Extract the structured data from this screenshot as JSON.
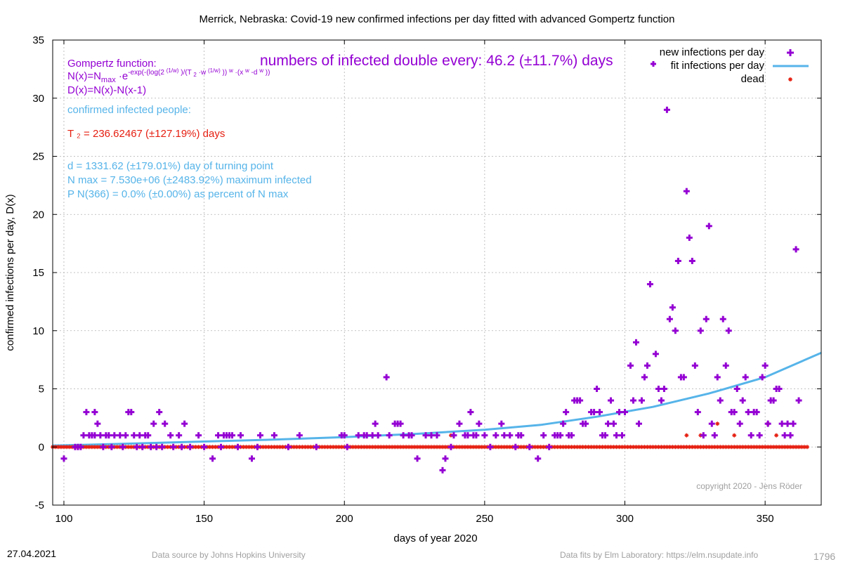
{
  "chart_data": {
    "type": "scatter",
    "title": "Merrick,  Nebraska: Covid-19 new confirmed infections per day fitted with advanced Gompertz function",
    "xlabel": "days of year 2020",
    "ylabel": "confirmed infections per day, D(x)",
    "xlim": [
      96,
      370
    ],
    "ylim": [
      -5,
      35
    ],
    "x_ticks": [
      100,
      150,
      200,
      250,
      300,
      350
    ],
    "y_ticks": [
      -5,
      0,
      5,
      10,
      15,
      20,
      25,
      30,
      35
    ],
    "grid": true,
    "legend_position": "top-right",
    "legend": [
      "new infections per day",
      "fit infections per day",
      "dead"
    ],
    "series": [
      {
        "name": "new infections per day",
        "style": "plus",
        "color": "#9400d3",
        "points": [
          [
            100,
            -1
          ],
          [
            104,
            0
          ],
          [
            105,
            0
          ],
          [
            106,
            0
          ],
          [
            107,
            1
          ],
          [
            108,
            3
          ],
          [
            109,
            1
          ],
          [
            110,
            1
          ],
          [
            111,
            3
          ],
          [
            111,
            1
          ],
          [
            112,
            2
          ],
          [
            113,
            1
          ],
          [
            114,
            0
          ],
          [
            115,
            1
          ],
          [
            116,
            1
          ],
          [
            117,
            0
          ],
          [
            118,
            1
          ],
          [
            120,
            1
          ],
          [
            121,
            0
          ],
          [
            122,
            1
          ],
          [
            123,
            3
          ],
          [
            124,
            3
          ],
          [
            125,
            1
          ],
          [
            126,
            0
          ],
          [
            127,
            1
          ],
          [
            128,
            0
          ],
          [
            129,
            1
          ],
          [
            130,
            1
          ],
          [
            131,
            0
          ],
          [
            132,
            2
          ],
          [
            133,
            0
          ],
          [
            134,
            3
          ],
          [
            135,
            0
          ],
          [
            136,
            2
          ],
          [
            138,
            1
          ],
          [
            139,
            0
          ],
          [
            141,
            1
          ],
          [
            142,
            0
          ],
          [
            143,
            2
          ],
          [
            145,
            0
          ],
          [
            148,
            1
          ],
          [
            150,
            0
          ],
          [
            153,
            -1
          ],
          [
            155,
            1
          ],
          [
            156,
            0
          ],
          [
            157,
            1
          ],
          [
            158,
            1
          ],
          [
            159,
            1
          ],
          [
            160,
            1
          ],
          [
            162,
            0
          ],
          [
            163,
            1
          ],
          [
            167,
            -1
          ],
          [
            169,
            0
          ],
          [
            170,
            1
          ],
          [
            175,
            1
          ],
          [
            180,
            0
          ],
          [
            184,
            1
          ],
          [
            190,
            0
          ],
          [
            199,
            1
          ],
          [
            200,
            1
          ],
          [
            201,
            0
          ],
          [
            205,
            1
          ],
          [
            207,
            1
          ],
          [
            208,
            1
          ],
          [
            210,
            1
          ],
          [
            211,
            2
          ],
          [
            212,
            1
          ],
          [
            215,
            6
          ],
          [
            216,
            1
          ],
          [
            218,
            2
          ],
          [
            219,
            2
          ],
          [
            220,
            2
          ],
          [
            221,
            1
          ],
          [
            223,
            1
          ],
          [
            224,
            1
          ],
          [
            226,
            -1
          ],
          [
            229,
            1
          ],
          [
            231,
            1
          ],
          [
            233,
            1
          ],
          [
            235,
            -2
          ],
          [
            236,
            -1
          ],
          [
            238,
            0
          ],
          [
            239,
            1
          ],
          [
            241,
            2
          ],
          [
            243,
            1
          ],
          [
            244,
            1
          ],
          [
            245,
            3
          ],
          [
            246,
            1
          ],
          [
            247,
            1
          ],
          [
            248,
            2
          ],
          [
            250,
            1
          ],
          [
            252,
            0
          ],
          [
            254,
            1
          ],
          [
            256,
            2
          ],
          [
            257,
            1
          ],
          [
            259,
            1
          ],
          [
            261,
            0
          ],
          [
            262,
            1
          ],
          [
            263,
            1
          ],
          [
            266,
            0
          ],
          [
            269,
            -1
          ],
          [
            271,
            1
          ],
          [
            273,
            0
          ],
          [
            275,
            1
          ],
          [
            276,
            1
          ],
          [
            277,
            1
          ],
          [
            278,
            2
          ],
          [
            279,
            3
          ],
          [
            280,
            1
          ],
          [
            281,
            1
          ],
          [
            282,
            4
          ],
          [
            283,
            4
          ],
          [
            284,
            4
          ],
          [
            285,
            2
          ],
          [
            286,
            2
          ],
          [
            288,
            3
          ],
          [
            289,
            3
          ],
          [
            290,
            5
          ],
          [
            291,
            3
          ],
          [
            292,
            1
          ],
          [
            293,
            1
          ],
          [
            294,
            2
          ],
          [
            295,
            4
          ],
          [
            296,
            2
          ],
          [
            297,
            1
          ],
          [
            298,
            3
          ],
          [
            299,
            1
          ],
          [
            300,
            3
          ],
          [
            302,
            7
          ],
          [
            303,
            4
          ],
          [
            304,
            9
          ],
          [
            305,
            2
          ],
          [
            306,
            4
          ],
          [
            307,
            6
          ],
          [
            308,
            7
          ],
          [
            309,
            14
          ],
          [
            311,
            8
          ],
          [
            312,
            5
          ],
          [
            313,
            4
          ],
          [
            314,
            5
          ],
          [
            315,
            29
          ],
          [
            316,
            11
          ],
          [
            317,
            12
          ],
          [
            318,
            10
          ],
          [
            319,
            16
          ],
          [
            320,
            6
          ],
          [
            321,
            6
          ],
          [
            322,
            22
          ],
          [
            323,
            18
          ],
          [
            324,
            16
          ],
          [
            325,
            7
          ],
          [
            326,
            3
          ],
          [
            327,
            10
          ],
          [
            328,
            1
          ],
          [
            329,
            11
          ],
          [
            330,
            19
          ],
          [
            331,
            2
          ],
          [
            332,
            1
          ],
          [
            333,
            6
          ],
          [
            334,
            4
          ],
          [
            335,
            11
          ],
          [
            336,
            7
          ],
          [
            337,
            10
          ],
          [
            338,
            3
          ],
          [
            339,
            3
          ],
          [
            340,
            5
          ],
          [
            341,
            2
          ],
          [
            342,
            4
          ],
          [
            343,
            6
          ],
          [
            344,
            3
          ],
          [
            345,
            1
          ],
          [
            346,
            3
          ],
          [
            347,
            3
          ],
          [
            348,
            1
          ],
          [
            349,
            6
          ],
          [
            350,
            7
          ],
          [
            351,
            2
          ],
          [
            352,
            4
          ],
          [
            353,
            4
          ],
          [
            354,
            5
          ],
          [
            355,
            5
          ],
          [
            356,
            2
          ],
          [
            357,
            1
          ],
          [
            358,
            2
          ],
          [
            359,
            1
          ],
          [
            360,
            2
          ],
          [
            361,
            17
          ],
          [
            362,
            4
          ]
        ]
      },
      {
        "name": "fit infections per day",
        "style": "line",
        "color": "#56b4e9",
        "points": [
          [
            96,
            0.12
          ],
          [
            120,
            0.26
          ],
          [
            150,
            0.47
          ],
          [
            175,
            0.63
          ],
          [
            200,
            0.85
          ],
          [
            225,
            1.12
          ],
          [
            250,
            1.48
          ],
          [
            270,
            1.9
          ],
          [
            290,
            2.6
          ],
          [
            310,
            3.45
          ],
          [
            330,
            4.6
          ],
          [
            350,
            6.0
          ],
          [
            370,
            8.1
          ]
        ]
      },
      {
        "name": "dead",
        "style": "star",
        "color": "#e51e10",
        "from": 96,
        "to": 365,
        "value": 0,
        "extra": [
          [
            238,
            1
          ],
          [
            322,
            1
          ],
          [
            327,
            1
          ],
          [
            333,
            2
          ],
          [
            339,
            1
          ],
          [
            351,
            2
          ],
          [
            354,
            1
          ]
        ]
      }
    ],
    "annotations": {
      "gompertz_label": "Gompertz function:",
      "gompertz_line2": "D(x)=N(x)-N(x-1)",
      "confirmed_label": "confirmed infected people:",
      "t2": "T ₂ = 236.62467 (±127.19%) days",
      "d": "d = 1331.62 (±179.01%) day of turning point",
      "nmax_line": "N max = 7.530e+06 (±2483.92%) maximum infected",
      "pn": "P N(366) = 0.0% (±0.00%) as percent of N max",
      "doubling": "numbers of infected double every: 46.2 (±11.7%) days",
      "copyright": "copyright 2020 - Jens Röder"
    }
  },
  "footer": {
    "date": "27.04.2021",
    "source": "Data source by Johns Hopkins University",
    "fits": "Data fits by Elm Laboratory: https://elm.nsupdate.info",
    "id": "1796"
  }
}
